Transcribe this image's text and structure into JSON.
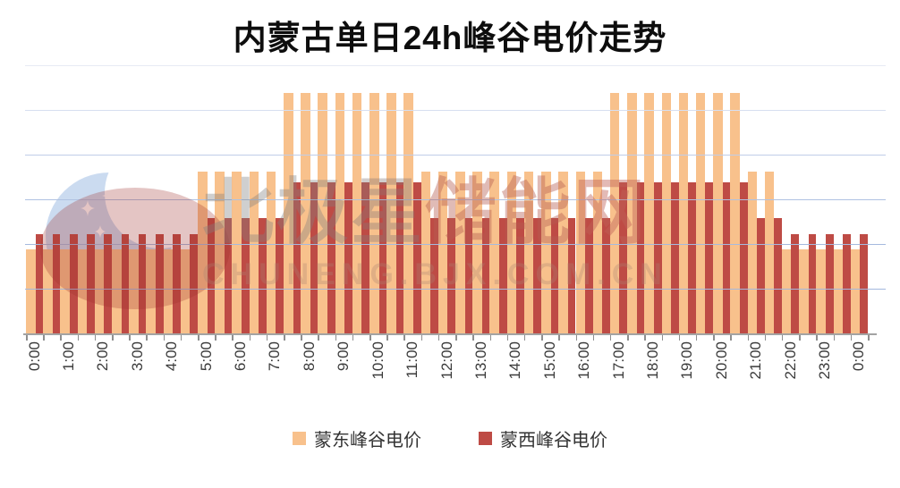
{
  "title": "内蒙古单日24h峰谷电价走势",
  "watermark": {
    "site_text": "北极星储能网",
    "site_char_colors": [
      "rgba(128,128,128,0.38)",
      "rgba(128,128,128,0.38)",
      "rgba(134,122,122,0.38)",
      "rgba(182,92,82,0.42)",
      "rgba(182,92,82,0.42)",
      "rgba(192,98,88,0.44)"
    ],
    "url_text": "CHUNENG.BJX.COM.CN"
  },
  "colors": {
    "mengdong": "#F8C18C",
    "mengxi": "#BE4B45",
    "axis": "#A3A3A3",
    "tick_label": "#3A3A3A",
    "gridlines": [
      "#A3B8DE",
      "#A5BADF",
      "#AFC2E2",
      "#C0CDE8",
      "#D7DFF0",
      "#E7EAF4"
    ]
  },
  "chart_data": {
    "type": "bar",
    "title": "内蒙古单日24h峰谷电价走势",
    "xlabel": "",
    "ylabel": "",
    "y_axis_labels_visible": false,
    "y_unit_note": "No y-axis labels shown; values estimated in gridline units (1 unit = one gridline interval), 6 gridlines, baseline 0",
    "ylim": [
      0,
      6
    ],
    "grid": true,
    "legend_position": "bottom",
    "bar_interval": "30min",
    "categories": [
      "0:00",
      "0:30",
      "1:00",
      "1:30",
      "2:00",
      "2:30",
      "3:00",
      "3:30",
      "4:00",
      "4:30",
      "5:00",
      "5:30",
      "6:00",
      "6:30",
      "7:00",
      "7:30",
      "8:00",
      "8:30",
      "9:00",
      "9:30",
      "10:00",
      "10:30",
      "11:00",
      "11:30",
      "12:00",
      "12:30",
      "13:00",
      "13:30",
      "14:00",
      "14:30",
      "15:00",
      "15:30",
      "16:00",
      "16:30",
      "17:00",
      "17:30",
      "18:00",
      "18:30",
      "19:00",
      "19:30",
      "20:00",
      "20:30",
      "21:00",
      "21:30",
      "22:00",
      "22:30",
      "23:00",
      "23:30",
      "0:00"
    ],
    "x_tick_labels": [
      "0:00",
      "1:00",
      "2:00",
      "3:00",
      "4:00",
      "5:00",
      "6:00",
      "7:00",
      "8:00",
      "9:00",
      "10:00",
      "11:00",
      "12:00",
      "13:00",
      "14:00",
      "15:00",
      "16:00",
      "17:00",
      "18:00",
      "19:00",
      "20:00",
      "21:00",
      "22:00",
      "23:00",
      "0:00"
    ],
    "series": [
      {
        "name": "蒙东峰谷电价",
        "color": "#F8C18C",
        "values": [
          1.9,
          1.9,
          1.9,
          1.9,
          1.9,
          1.9,
          1.9,
          1.9,
          1.9,
          1.9,
          3.65,
          3.65,
          3.65,
          3.65,
          3.65,
          5.4,
          5.4,
          5.4,
          5.4,
          5.4,
          5.4,
          5.4,
          5.4,
          3.65,
          3.65,
          3.65,
          3.65,
          3.65,
          3.65,
          3.65,
          3.65,
          3.65,
          3.65,
          3.65,
          5.4,
          5.4,
          5.4,
          5.4,
          5.4,
          5.4,
          5.4,
          5.4,
          3.65,
          3.65,
          1.9,
          1.9,
          1.9,
          1.9,
          1.9
        ]
      },
      {
        "name": "蒙西峰谷电价",
        "color": "#BE4B45",
        "values": [
          2.25,
          2.25,
          2.25,
          2.25,
          2.25,
          2.25,
          2.25,
          2.25,
          2.25,
          2.25,
          2.6,
          2.6,
          2.6,
          2.6,
          2.6,
          3.4,
          3.4,
          3.4,
          3.4,
          3.4,
          3.4,
          3.4,
          3.4,
          2.6,
          2.6,
          2.6,
          2.6,
          2.6,
          2.6,
          2.6,
          2.6,
          2.6,
          2.6,
          2.6,
          3.4,
          3.4,
          3.4,
          3.4,
          3.4,
          3.4,
          3.4,
          3.4,
          2.6,
          2.6,
          2.25,
          2.25,
          2.25,
          2.25,
          2.25
        ]
      }
    ],
    "price_levels": {
      "蒙东峰谷电价": {
        "valley": 1.9,
        "flat": 3.65,
        "peak": 5.4
      },
      "蒙西峰谷电价": {
        "valley": 2.25,
        "flat": 2.6,
        "peak": 3.4
      },
      "valley_hours": "0:00-4:30 and 22:00-24:00",
      "flat_hours": "5:00-7:00, 11:30-16:30, 21:00-21:30",
      "peak_hours": "7:30-11:00 and 17:00-20:30"
    }
  }
}
